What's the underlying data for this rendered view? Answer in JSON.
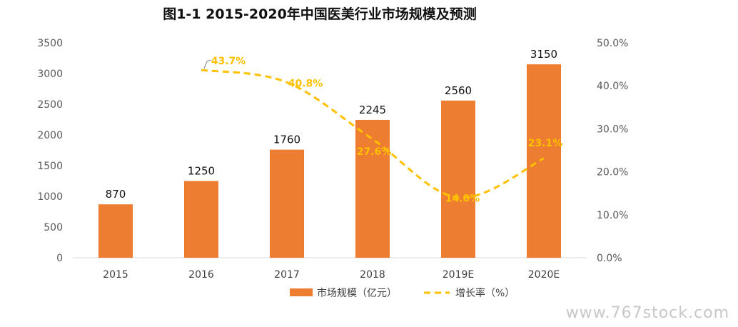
{
  "chart_data": {
    "type": "bar",
    "title": "图1-1 2015-2020年中国医美行业市场规模及预测",
    "categories": [
      "2015",
      "2016",
      "2017",
      "2018",
      "2019E",
      "2020E"
    ],
    "series": [
      {
        "name": "市场规模（亿元）",
        "type": "bar",
        "axis": "left",
        "values": [
          870,
          1250,
          1760,
          2245,
          2560,
          3150
        ],
        "labels": [
          "870",
          "1250",
          "1760",
          "2245",
          "2560",
          "3150"
        ],
        "color": "#ED7D31"
      },
      {
        "name": "增长率（%）",
        "type": "line",
        "axis": "right",
        "style": "dashed-smooth",
        "values": [
          null,
          43.7,
          40.8,
          27.6,
          14.0,
          23.1
        ],
        "labels": [
          null,
          "43.7%",
          "40.8%",
          "27.6%",
          "14.0%",
          "23.1%"
        ],
        "color": "#FFC000"
      }
    ],
    "ylim": [
      0,
      3500
    ],
    "yticks": [
      "0",
      "500",
      "1000",
      "1500",
      "2000",
      "2500",
      "3000",
      "3500"
    ],
    "y2lim": [
      0,
      50
    ],
    "y2ticks": [
      "0.0%",
      "10.0%",
      "20.0%",
      "30.0%",
      "40.0%",
      "50.0%"
    ],
    "grid": false,
    "legend_position": "bottom"
  },
  "watermark": "www.767stock.com"
}
